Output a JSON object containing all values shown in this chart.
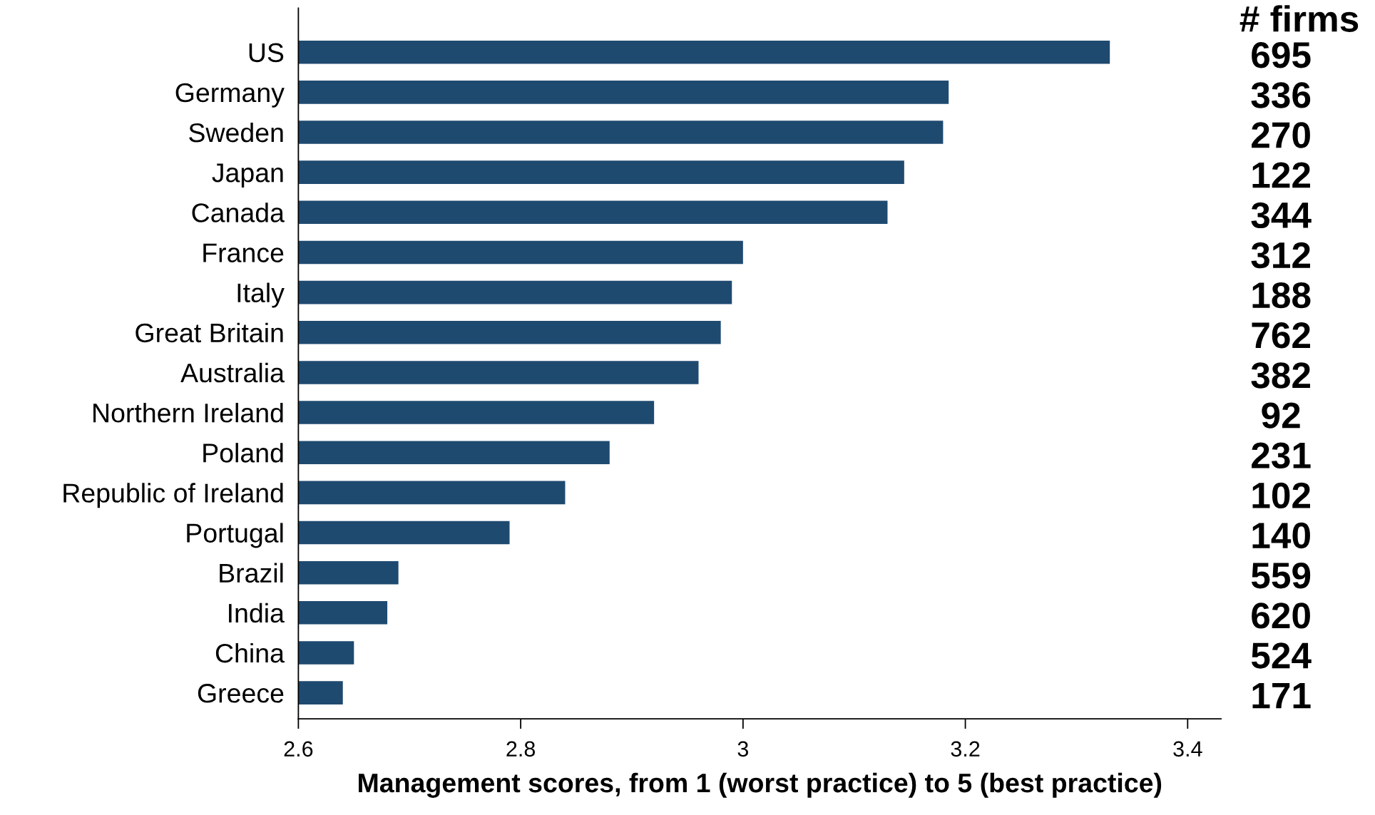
{
  "chart_data": {
    "type": "bar",
    "orientation": "horizontal",
    "xlabel": "Management scores, from 1 (worst practice) to 5 (best practice)",
    "categories": [
      "US",
      "Germany",
      "Sweden",
      "Japan",
      "Canada",
      "France",
      "Italy",
      "Great Britain",
      "Australia",
      "Northern Ireland",
      "Poland",
      "Republic of Ireland",
      "Portugal",
      "Brazil",
      "India",
      "China",
      "Greece"
    ],
    "values": [
      3.33,
      3.185,
      3.18,
      3.145,
      3.13,
      3.0,
      2.99,
      2.98,
      2.96,
      2.92,
      2.88,
      2.84,
      2.79,
      2.69,
      2.68,
      2.65,
      2.64
    ],
    "color": "#1f4a70",
    "xlim": [
      2.6,
      3.43
    ],
    "xticks": [
      2.6,
      2.8,
      3,
      3.2,
      3.4
    ],
    "grid": false,
    "legend": false,
    "annotations": [
      "# firms",
      "695",
      "336",
      "270",
      "122",
      "344",
      "312",
      "188",
      "762",
      "382",
      "92",
      "231",
      "102",
      "140",
      "559",
      "620",
      "524",
      "171"
    ]
  }
}
